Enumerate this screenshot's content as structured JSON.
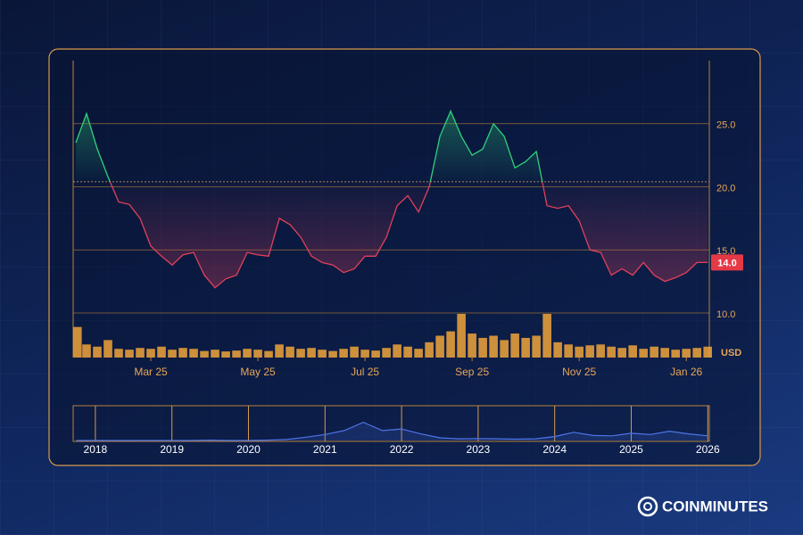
{
  "chart_data": [
    {
      "type": "area",
      "x": [
        0.6,
        0.8,
        1.0,
        1.2,
        1.4,
        1.6,
        1.8,
        2.0,
        2.2,
        2.4,
        2.6,
        2.8,
        3.0,
        3.2,
        3.4,
        3.6,
        3.8,
        4.0,
        4.2,
        4.4,
        4.6,
        4.8,
        5.0,
        5.2,
        5.4,
        5.6,
        5.8,
        6.0,
        6.2,
        6.4,
        6.6,
        6.8,
        7.0,
        7.2,
        7.4,
        7.6,
        7.8,
        8.0,
        8.2,
        8.4,
        8.6,
        8.8,
        9.0,
        9.2,
        9.4,
        9.6,
        9.8,
        10.0,
        10.2,
        10.4,
        10.6,
        10.8,
        11.0,
        11.2,
        11.4,
        11.6,
        11.8,
        12.0,
        12.2,
        12.4
      ],
      "xlim": [
        0.55,
        12.43
      ],
      "xticks": [
        {
          "value": 2,
          "label": "Mar 25"
        },
        {
          "value": 4,
          "label": "May 25"
        },
        {
          "value": 6,
          "label": "Jul 25"
        },
        {
          "value": 8,
          "label": "Sep 25"
        },
        {
          "value": 10,
          "label": "Nov 25"
        },
        {
          "value": 12,
          "label": "Jan 26"
        }
      ],
      "ylim": [
        10,
        30
      ],
      "yticks": [
        {
          "value": 10,
          "label": "10.0"
        },
        {
          "value": 15,
          "label": "15.0"
        },
        {
          "value": 20,
          "label": "20.0"
        },
        {
          "value": 25,
          "label": "25.0"
        }
      ],
      "y_label": "USD",
      "baseline": 20.4,
      "up_color": "#2fd07a",
      "down_color": "#e0405a",
      "values": [
        23.5,
        25.8,
        23,
        20.8,
        18.8,
        18.6,
        17.5,
        15.3,
        14.5,
        13.8,
        14.6,
        14.8,
        13.0,
        12.0,
        12.7,
        13.0,
        14.8,
        14.6,
        14.5,
        17.5,
        17.0,
        16.0,
        14.5,
        14.0,
        13.8,
        13.2,
        13.5,
        14.5,
        14.5,
        16.0,
        18.5,
        19.3,
        18.0,
        20.0,
        24.0,
        26.0,
        24.0,
        22.5,
        23.0,
        25.0,
        24.0,
        21.5,
        22.0,
        22.8,
        18.5,
        18.3,
        18.5,
        17.3,
        15.0,
        14.8,
        13.0,
        13.5,
        13.0,
        14.0,
        13.0,
        12.5,
        12.8,
        13.2,
        14.0,
        14.0
      ],
      "last_value": 14,
      "last_value_label": "14.0",
      "volume": {
        "ylim": [
          0,
          100
        ],
        "color": "#f0a43a",
        "values": [
          70,
          30,
          25,
          40,
          20,
          18,
          22,
          20,
          25,
          18,
          22,
          20,
          15,
          18,
          14,
          16,
          20,
          18,
          15,
          30,
          25,
          20,
          22,
          18,
          15,
          20,
          25,
          18,
          16,
          22,
          30,
          25,
          20,
          35,
          50,
          60,
          100,
          55,
          45,
          50,
          40,
          55,
          45,
          50,
          100,
          35,
          30,
          25,
          28,
          30,
          25,
          22,
          28,
          20,
          25,
          22,
          18,
          20,
          22,
          25
        ]
      }
    },
    {
      "type": "line",
      "x": [
        2017.75,
        2018,
        2018.25,
        2018.5,
        2018.75,
        2019,
        2019.25,
        2019.5,
        2019.75,
        2020,
        2020.25,
        2020.5,
        2020.75,
        2021,
        2021.25,
        2021.5,
        2021.75,
        2022,
        2022.25,
        2022.5,
        2022.75,
        2023,
        2023.25,
        2023.5,
        2023.75,
        2024,
        2024.25,
        2024.5,
        2024.75,
        2025,
        2025.25,
        2025.5,
        2025.75,
        2026
      ],
      "xlim": [
        2017.71,
        2026.02
      ],
      "xticks": [
        2018,
        2019,
        2020,
        2021,
        2022,
        2023,
        2024,
        2025,
        2026
      ],
      "ylim": [
        0,
        100
      ],
      "color": "#4f74e8",
      "values": [
        0,
        0,
        0,
        0,
        0,
        0,
        0,
        1,
        0,
        0,
        1,
        3,
        10,
        18,
        30,
        55,
        30,
        35,
        20,
        8,
        5,
        6,
        5,
        4,
        5,
        12,
        25,
        15,
        14,
        22,
        18,
        28,
        20,
        14
      ]
    }
  ],
  "brand": "COINMINUTES"
}
